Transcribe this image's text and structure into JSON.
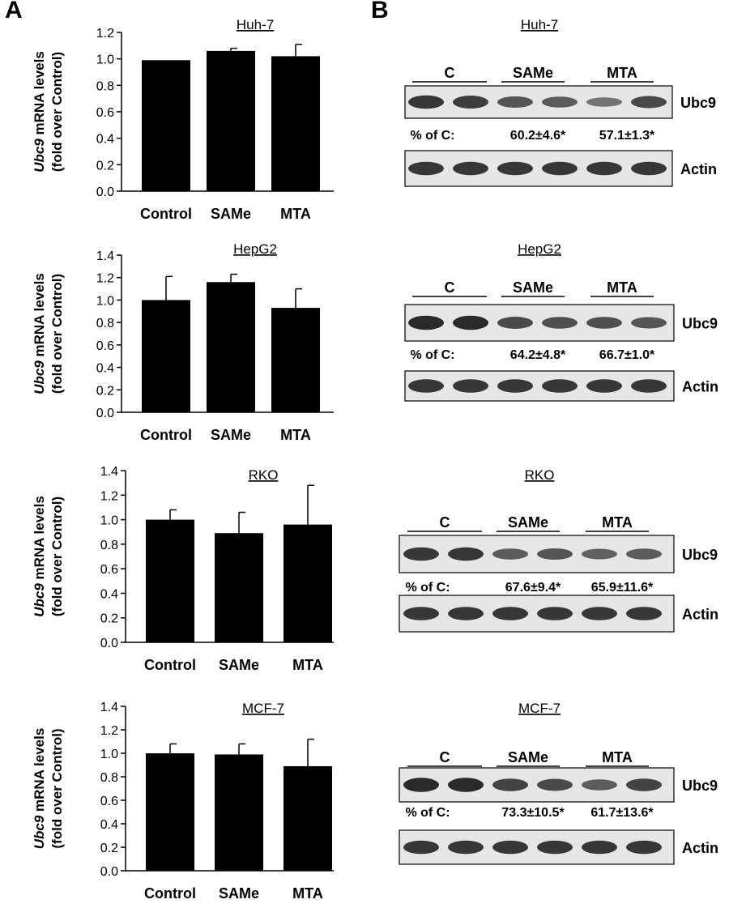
{
  "panels": {
    "a": "A",
    "b": "B"
  },
  "chart_data": [
    {
      "type": "bar",
      "title": "Huh-7",
      "ylabel_italic": "Ubc9",
      "ylabel_rest": " mRNA levels",
      "ylabel_line2": "(fold over Control)",
      "categories": [
        "Control",
        "SAMe",
        "MTA"
      ],
      "values": [
        0.99,
        1.06,
        1.02
      ],
      "errors": [
        0,
        0.02,
        0.09
      ],
      "ylim": [
        0,
        1.2
      ],
      "yticks": [
        "0.0",
        "0.2",
        "0.4",
        "0.6",
        "0.8",
        "1.0",
        "1.2"
      ],
      "legend": "none",
      "grid": false
    },
    {
      "type": "bar",
      "title": "HepG2",
      "ylabel_italic": "Ubc9",
      "ylabel_rest": " mRNA levels",
      "ylabel_line2": "(fold over Control)",
      "categories": [
        "Control",
        "SAMe",
        "MTA"
      ],
      "values": [
        1.0,
        1.16,
        0.93
      ],
      "errors": [
        0.21,
        0.07,
        0.17
      ],
      "ylim": [
        0,
        1.4
      ],
      "yticks": [
        "0.0",
        "0.2",
        "0.4",
        "0.6",
        "0.8",
        "1.0",
        "1.2",
        "1.4"
      ],
      "legend": "none",
      "grid": false
    },
    {
      "type": "bar",
      "title": "RKO",
      "ylabel_italic": "Ubc9",
      "ylabel_rest": " mRNA levels",
      "ylabel_line2": "(fold over Control)",
      "categories": [
        "Control",
        "SAMe",
        "MTA"
      ],
      "values": [
        1.0,
        0.89,
        0.96
      ],
      "errors": [
        0.08,
        0.17,
        0.32
      ],
      "ylim": [
        0,
        1.4
      ],
      "yticks": [
        "0.0",
        "0.2",
        "0.4",
        "0.6",
        "0.8",
        "1.0",
        "1.2",
        "1.4"
      ],
      "legend": "none",
      "grid": false
    },
    {
      "type": "bar",
      "title": "MCF-7",
      "ylabel_italic": "Ubc9",
      "ylabel_rest": " mRNA levels",
      "ylabel_line2": "(fold over Control)",
      "categories": [
        "Control",
        "SAMe",
        "MTA"
      ],
      "values": [
        1.0,
        0.99,
        0.89
      ],
      "errors": [
        0.08,
        0.09,
        0.23
      ],
      "ylim": [
        0,
        1.4
      ],
      "yticks": [
        "0.0",
        "0.2",
        "0.4",
        "0.6",
        "0.8",
        "1.0",
        "1.2",
        "1.4"
      ],
      "legend": "none",
      "grid": false
    }
  ],
  "blots": [
    {
      "title": "Huh-7",
      "groups": [
        "C",
        "SAMe",
        "MTA"
      ],
      "target": "Ubc9",
      "loading": "Actin",
      "pct_label": "% of C:",
      "pct_same": "60.2±4.6*",
      "pct_mta": "57.1±1.3*",
      "band_intensity": [
        0.85,
        0.8,
        0.6,
        0.55,
        0.35,
        0.7
      ]
    },
    {
      "title": "HepG2",
      "groups": [
        "C",
        "SAMe",
        "MTA"
      ],
      "target": "Ubc9",
      "loading": "Actin",
      "pct_label": "% of C:",
      "pct_same": "64.2±4.8*",
      "pct_mta": "66.7±1.0*",
      "band_intensity": [
        0.95,
        0.95,
        0.7,
        0.65,
        0.65,
        0.6
      ]
    },
    {
      "title": "RKO",
      "groups": [
        "C",
        "SAMe",
        "MTA"
      ],
      "target": "Ubc9",
      "loading": "Actin",
      "pct_label": "% of C:",
      "pct_same": "67.6±9.4*",
      "pct_mta": "65.9±11.6*",
      "band_intensity": [
        0.85,
        0.85,
        0.55,
        0.6,
        0.5,
        0.55
      ]
    },
    {
      "title": "MCF-7",
      "groups": [
        "C",
        "SAMe",
        "MTA"
      ],
      "target": "Ubc9",
      "loading": "Actin",
      "pct_label": "% of C:",
      "pct_same": "73.3±10.5*",
      "pct_mta": "61.7±13.6*",
      "band_intensity": [
        0.95,
        0.95,
        0.75,
        0.7,
        0.55,
        0.75
      ]
    }
  ]
}
